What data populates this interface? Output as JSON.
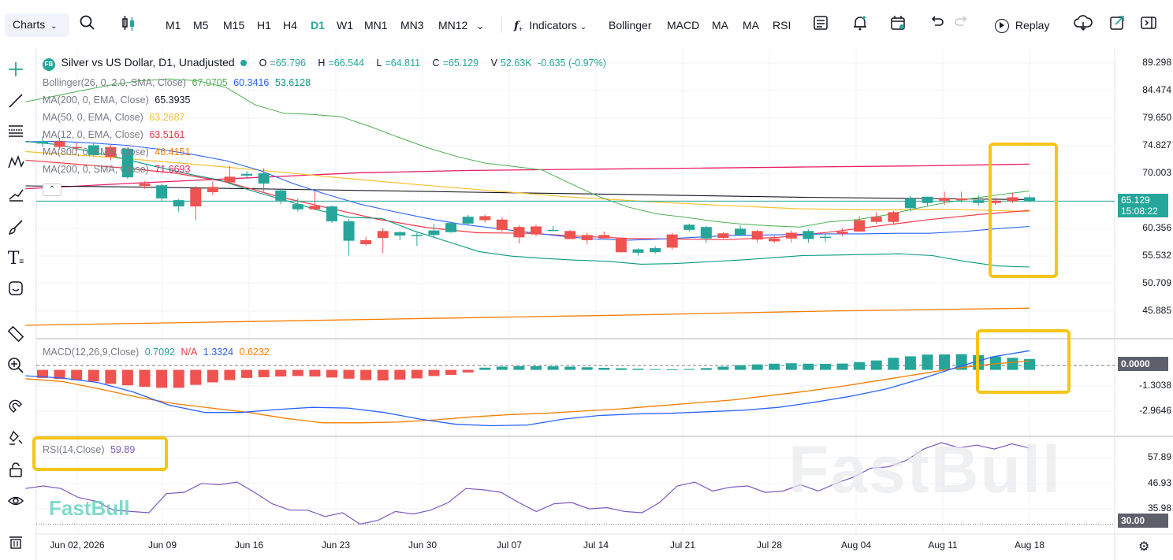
{
  "toolbar": {
    "charts_label": "Charts",
    "timeframes": [
      "M1",
      "M5",
      "M15",
      "H1",
      "H4",
      "D1",
      "W1",
      "MN1",
      "MN3",
      "MN12"
    ],
    "active_timeframe": "D1",
    "indicators_label": "Indicators",
    "quick_indicators": [
      "Bollinger",
      "MACD",
      "MA",
      "MA",
      "RSI"
    ],
    "replay_label": "Replay"
  },
  "symbol": {
    "logo_text": "FB",
    "title": "Silver vs US Dollar, D1, Unadjusted",
    "o_label": "O",
    "o": "=65.796",
    "h_label": "H",
    "h": "=66.544",
    "l_label": "L",
    "l": "=64.811",
    "c_label": "C",
    "c": "=65.129",
    "v_label": "V",
    "v": "52.63K",
    "change": "-0.635 (-0.97%)"
  },
  "legends": {
    "bollinger": {
      "label": "Bollinger(26, 0, 2.0, SMA, Close)",
      "v1": "67.0705",
      "v2": "60.3416",
      "v3": "53.6128"
    },
    "ma1": {
      "label": "MA(200, 0, EMA, Close)",
      "value": "65.3935"
    },
    "ma2": {
      "label": "MA(50, 0, EMA, Close)",
      "value": "63.2687"
    },
    "ma3": {
      "label": "MA(12, 0, EMA, Close)",
      "value": "63.5161"
    },
    "ma4": {
      "label": "MA(800, 0, EMA, Close)",
      "value": "46.4151"
    },
    "ma5": {
      "label": "MA(200, 0, SMA, Close)",
      "value": "71.6693"
    },
    "macd": {
      "label": "MACD(12,26,9,Close)",
      "v1": "0.7092",
      "v2": "N/A",
      "v3": "1.3324",
      "v4": "0.6232"
    },
    "rsi": {
      "label": "RSI(14,Close)",
      "value": "59.89"
    }
  },
  "colors": {
    "up": "#26a69a",
    "down": "#ef5350",
    "bb_upper": "#4caf50",
    "bb_mid": "#2962ff",
    "bb_lower": "#089981",
    "ma200ema": "#131722",
    "ma50": "#fbc02d",
    "ma12": "#f23645",
    "ma800": "#f57c00",
    "ma200sma": "#e91e63",
    "rsi": "#7e57c2",
    "highlight": "#f5c518"
  },
  "price_axis": [
    "89.298",
    "84.474",
    "79.650",
    "74.827",
    "70.003",
    "60.356",
    "55.532",
    "50.709",
    "45.885"
  ],
  "current_price": "65.129",
  "countdown": "15:08:22",
  "macd_axis": [
    "0.0000",
    "-1.3038",
    "-2.9646"
  ],
  "rsi_axis": [
    "57.89",
    "46.93",
    "35.98",
    "30.00"
  ],
  "x_axis": [
    "Jun 02, 2026",
    "Jun 09",
    "Jun 16",
    "Jun 23",
    "Jun 30",
    "Jul 07",
    "Jul 14",
    "Jul 21",
    "Jul 28",
    "Aug 04",
    "Aug 11",
    "Aug 18"
  ],
  "watermark": "FastBull",
  "chart_data": {
    "type": "candlestick",
    "title": "Silver vs US Dollar, D1, Unadjusted",
    "ylim": [
      44,
      91
    ],
    "candles": [
      {
        "o": 75.2,
        "h": 76.5,
        "l": 74.6,
        "c": 75.6
      },
      {
        "o": 75.6,
        "h": 76.2,
        "l": 74.2,
        "c": 74.6
      },
      {
        "o": 74.6,
        "h": 75.4,
        "l": 73.9,
        "c": 74.5
      },
      {
        "o": 73.2,
        "h": 75.2,
        "l": 73.0,
        "c": 74.9
      },
      {
        "o": 74.6,
        "h": 75.0,
        "l": 72.3,
        "c": 72.9
      },
      {
        "o": 69.3,
        "h": 74.6,
        "l": 69.0,
        "c": 74.3
      },
      {
        "o": 68.2,
        "h": 68.6,
        "l": 67.3,
        "c": 67.8
      },
      {
        "o": 65.6,
        "h": 68.2,
        "l": 65.2,
        "c": 67.9
      },
      {
        "o": 64.2,
        "h": 65.5,
        "l": 63.3,
        "c": 65.3
      },
      {
        "o": 67.4,
        "h": 67.8,
        "l": 61.8,
        "c": 64.2
      },
      {
        "o": 67.6,
        "h": 68.6,
        "l": 66.2,
        "c": 66.7
      },
      {
        "o": 69.4,
        "h": 71.3,
        "l": 68.5,
        "c": 68.4
      },
      {
        "o": 69.6,
        "h": 70.4,
        "l": 69.0,
        "c": 69.9
      },
      {
        "o": 68.2,
        "h": 70.9,
        "l": 66.8,
        "c": 70.0
      },
      {
        "o": 65.2,
        "h": 67.1,
        "l": 64.6,
        "c": 67.0
      },
      {
        "o": 63.7,
        "h": 65.6,
        "l": 63.3,
        "c": 64.6
      },
      {
        "o": 64.3,
        "h": 66.9,
        "l": 63.5,
        "c": 63.7
      },
      {
        "o": 61.6,
        "h": 64.4,
        "l": 61.3,
        "c": 64.2
      },
      {
        "o": 58.2,
        "h": 62.0,
        "l": 55.6,
        "c": 61.6
      },
      {
        "o": 58.3,
        "h": 58.9,
        "l": 57.3,
        "c": 57.6
      },
      {
        "o": 59.9,
        "h": 60.4,
        "l": 56.0,
        "c": 58.7
      },
      {
        "o": 59.1,
        "h": 59.9,
        "l": 58.3,
        "c": 59.7
      },
      {
        "o": 59.2,
        "h": 59.6,
        "l": 57.3,
        "c": 59.2
      },
      {
        "o": 59.2,
        "h": 61.2,
        "l": 58.8,
        "c": 60.0
      },
      {
        "o": 59.7,
        "h": 61.5,
        "l": 59.6,
        "c": 61.3
      },
      {
        "o": 61.2,
        "h": 62.7,
        "l": 61.0,
        "c": 62.4
      },
      {
        "o": 62.5,
        "h": 62.8,
        "l": 61.4,
        "c": 61.8
      },
      {
        "o": 61.9,
        "h": 62.3,
        "l": 59.7,
        "c": 60.1
      },
      {
        "o": 60.6,
        "h": 60.9,
        "l": 57.7,
        "c": 58.8
      },
      {
        "o": 60.7,
        "h": 61.0,
        "l": 59.0,
        "c": 59.3
      },
      {
        "o": 60.1,
        "h": 60.8,
        "l": 59.9,
        "c": 60.1
      },
      {
        "o": 59.9,
        "h": 60.1,
        "l": 58.6,
        "c": 58.5
      },
      {
        "o": 59.2,
        "h": 59.6,
        "l": 57.6,
        "c": 58.3
      },
      {
        "o": 59.2,
        "h": 59.8,
        "l": 58.7,
        "c": 58.6
      },
      {
        "o": 58.6,
        "h": 58.7,
        "l": 56.1,
        "c": 56.2
      },
      {
        "o": 56.1,
        "h": 56.9,
        "l": 55.6,
        "c": 56.7
      },
      {
        "o": 56.2,
        "h": 57.3,
        "l": 55.9,
        "c": 56.9
      },
      {
        "o": 59.3,
        "h": 59.6,
        "l": 56.6,
        "c": 57.0
      },
      {
        "o": 60.1,
        "h": 61.2,
        "l": 59.8,
        "c": 61.0
      },
      {
        "o": 58.6,
        "h": 60.8,
        "l": 57.8,
        "c": 60.6
      },
      {
        "o": 59.5,
        "h": 59.7,
        "l": 58.6,
        "c": 58.7
      },
      {
        "o": 59.2,
        "h": 60.9,
        "l": 59.0,
        "c": 60.3
      },
      {
        "o": 59.9,
        "h": 60.1,
        "l": 57.9,
        "c": 58.4
      },
      {
        "o": 58.6,
        "h": 59.1,
        "l": 57.8,
        "c": 58.1
      },
      {
        "o": 59.6,
        "h": 60.0,
        "l": 57.9,
        "c": 58.6
      },
      {
        "o": 58.5,
        "h": 60.2,
        "l": 57.8,
        "c": 59.9
      },
      {
        "o": 58.9,
        "h": 59.5,
        "l": 58.0,
        "c": 58.9
      },
      {
        "o": 59.8,
        "h": 60.4,
        "l": 59.0,
        "c": 59.4
      },
      {
        "o": 61.8,
        "h": 62.5,
        "l": 59.8,
        "c": 59.8
      },
      {
        "o": 62.4,
        "h": 63.2,
        "l": 61.2,
        "c": 61.5
      },
      {
        "o": 63.2,
        "h": 63.4,
        "l": 61.0,
        "c": 61.5
      },
      {
        "o": 63.9,
        "h": 66.1,
        "l": 63.3,
        "c": 65.6
      },
      {
        "o": 64.8,
        "h": 65.9,
        "l": 64.3,
        "c": 65.9
      },
      {
        "o": 65.7,
        "h": 66.8,
        "l": 64.5,
        "c": 65.2
      },
      {
        "o": 65.6,
        "h": 66.8,
        "l": 64.9,
        "c": 65.3
      },
      {
        "o": 64.8,
        "h": 66.1,
        "l": 64.3,
        "c": 65.3
      },
      {
        "o": 65.2,
        "h": 65.8,
        "l": 64.5,
        "c": 64.8
      },
      {
        "o": 65.8,
        "h": 66.6,
        "l": 64.8,
        "c": 65.1
      },
      {
        "o": 65.1,
        "h": 66.1,
        "l": 64.9,
        "c": 65.8
      }
    ],
    "bb_upper": [
      82.5,
      83.5,
      84.5,
      85.5,
      86.2,
      86.5,
      86.2,
      85.0,
      82.0,
      80.5,
      80.3,
      79.9,
      78.2,
      76.3,
      74.5,
      73.0,
      71.8,
      71.2,
      70.6,
      68.2,
      65.9,
      64.1,
      62.9,
      62.3,
      61.6,
      61.1,
      60.8,
      60.6,
      61.5,
      61.9,
      62.7,
      63.8,
      64.8,
      65.6,
      66.3,
      66.9
    ],
    "bb_mid": [
      75.5,
      75.6,
      75.3,
      74.9,
      74.2,
      73.3,
      72.2,
      70.5,
      68.2,
      66.3,
      64.6,
      63.3,
      62.1,
      61.1,
      60.4,
      59.7,
      59.0,
      58.5,
      58.3,
      58.5,
      58.8,
      59.1,
      59.2,
      59.3,
      59.4,
      59.4,
      59.5,
      59.5,
      59.8,
      60.3,
      60.7
    ],
    "bb_lower": [
      75.6,
      75.0,
      73.8,
      72.6,
      71.2,
      69.9,
      68.8,
      66.9,
      65.3,
      63.6,
      62.3,
      62.1,
      59.9,
      58.1,
      56.3,
      55.5,
      55.1,
      54.8,
      54.6,
      54.1,
      54.2,
      54.5,
      54.8,
      55.2,
      55.6,
      55.7,
      55.8,
      55.9,
      55.6,
      54.6,
      53.8,
      53.6
    ],
    "ma200ema": [
      67.8,
      67.6,
      67.3,
      67.0,
      66.7,
      66.4,
      66.1,
      65.8,
      65.6,
      65.4
    ],
    "ma50ema": [
      73.8,
      72.9,
      71.8,
      70.6,
      69.3,
      68.1,
      67.0,
      65.9,
      65.1,
      64.4,
      63.8,
      63.6,
      63.7,
      63.3
    ],
    "ma12ema": [
      72.3,
      71.6,
      70.9,
      70.0,
      68.5,
      66.0,
      64.0,
      62.0,
      60.5,
      59.6,
      59.5,
      59.0,
      58.6,
      58.5,
      58.4,
      58.8,
      59.7,
      60.8,
      61.9,
      62.8,
      63.5
    ],
    "ma800ema": [
      43.4,
      44.0,
      44.6,
      45.2,
      45.9,
      46.4
    ],
    "ma200sma": [
      67.3,
      68.3,
      69.2,
      70.1,
      70.5,
      70.7,
      70.9,
      71.1,
      71.3,
      71.6
    ],
    "macd": {
      "ylim": [
        -4.2,
        1.8
      ],
      "hist": [
        -0.55,
        -0.62,
        -0.7,
        -0.78,
        -0.95,
        -1.05,
        -1.15,
        -1.22,
        -1.22,
        -1.02,
        -0.85,
        -0.7,
        -0.55,
        -0.5,
        -0.45,
        -0.42,
        -0.45,
        -0.52,
        -0.6,
        -0.7,
        -0.72,
        -0.66,
        -0.58,
        -0.42,
        -0.34,
        -0.18,
        0.15,
        0.22,
        0.25,
        0.25,
        0.24,
        0.22,
        0.18,
        0.14,
        0.11,
        0.08,
        0.05,
        0.04,
        0.06,
        0.12,
        0.22,
        0.32,
        0.37,
        0.42,
        0.45,
        0.42,
        0.41,
        0.43,
        0.53,
        0.64,
        0.82,
        0.92,
        1.04,
        1.05,
        1.07,
        1.0,
        0.9,
        0.82,
        0.74
      ],
      "macd_line": [
        -0.4,
        -0.55,
        -0.85,
        -1.5,
        -2.4,
        -2.9,
        -2.9,
        -2.7,
        -2.55,
        -2.6,
        -2.9,
        -3.35,
        -3.7,
        -3.8,
        -3.75,
        -3.35,
        -3.1,
        -3.0,
        -2.95,
        -2.85,
        -2.75,
        -2.55,
        -2.2,
        -1.8,
        -1.3,
        -0.6,
        0.2,
        0.9,
        1.3
      ],
      "signal_line": [
        -0.6,
        -0.8,
        -1.3,
        -1.85,
        -2.3,
        -2.6,
        -2.9,
        -3.3,
        -3.6,
        -3.6,
        -3.55,
        -3.4,
        -3.2,
        -3.05,
        -2.95,
        -2.8,
        -2.65,
        -2.45,
        -2.25,
        -2.05,
        -1.75,
        -1.45,
        -1.1,
        -0.7,
        -0.3,
        0.1,
        0.4,
        0.6
      ]
    },
    "rsi": {
      "ylim": [
        28,
        62
      ],
      "values": [
        44.0,
        45.0,
        44.0,
        40.5,
        39.0,
        35.5,
        35.0,
        34.5,
        42.0,
        42.5,
        46.0,
        45.5,
        46.5,
        42.5,
        38.0,
        35.5,
        35.5,
        33.0,
        34.5,
        30.0,
        31.5,
        35.0,
        34.0,
        35.5,
        38.5,
        44.0,
        43.5,
        42.5,
        38.5,
        35.0,
        38.0,
        38.5,
        36.0,
        36.5,
        35.0,
        34.5,
        38.5,
        45.0,
        46.5,
        43.0,
        44.5,
        45.0,
        42.5,
        43.0,
        45.5,
        43.0,
        46.0,
        48.5,
        52.0,
        52.5,
        55.0,
        59.5,
        62.0,
        60.0,
        61.0,
        59.5,
        61.5,
        59.89
      ],
      "levels": [
        70,
        30
      ]
    }
  }
}
